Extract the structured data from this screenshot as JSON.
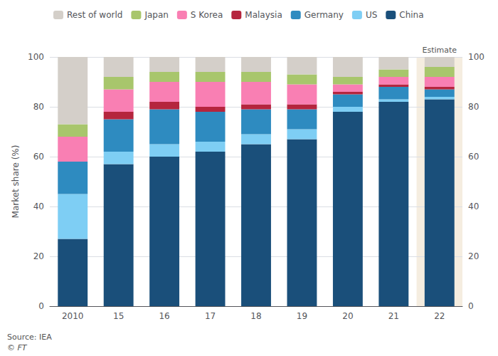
{
  "chart_data": {
    "type": "bar",
    "stacked": true,
    "categories": [
      "2010",
      "15",
      "16",
      "17",
      "18",
      "19",
      "20",
      "21",
      "22"
    ],
    "series": [
      {
        "name": "China",
        "color": "#1a4f7a",
        "values": [
          27,
          57,
          60,
          62,
          65,
          67,
          78,
          82,
          83
        ]
      },
      {
        "name": "US",
        "color": "#7ecef4",
        "values": [
          18,
          5,
          5,
          4,
          4,
          4,
          2,
          1,
          1
        ]
      },
      {
        "name": "Germany",
        "color": "#2e8bc0",
        "values": [
          13,
          13,
          14,
          12,
          10,
          8,
          5,
          5,
          3
        ]
      },
      {
        "name": "Malaysia",
        "color": "#b5253e",
        "values": [
          0,
          3,
          3,
          2,
          2,
          2,
          1,
          1,
          1
        ]
      },
      {
        "name": "S Korea",
        "color": "#f97fb3",
        "values": [
          10,
          9,
          8,
          10,
          9,
          8,
          3,
          3,
          4
        ]
      },
      {
        "name": "Japan",
        "color": "#a8c66c",
        "values": [
          5,
          5,
          4,
          4,
          4,
          4,
          3,
          3,
          4
        ]
      },
      {
        "name": "Rest of world",
        "color": "#d4cfc9",
        "values": [
          27,
          8,
          6,
          6,
          6,
          7,
          8,
          5,
          4
        ]
      }
    ],
    "ylabel": "Market share (%)",
    "ylim": [
      0,
      100
    ],
    "yticks": [
      0,
      20,
      40,
      60,
      80,
      100
    ],
    "y2lim": [
      0,
      100
    ],
    "y2ticks": [
      0,
      20,
      40,
      60,
      80,
      100
    ],
    "grid": true,
    "legend": "upper left",
    "annotations": [
      {
        "text": "Estimate",
        "category": "22"
      },
      {
        "text": "Source: IEA"
      },
      {
        "text": "© FT"
      }
    ]
  }
}
